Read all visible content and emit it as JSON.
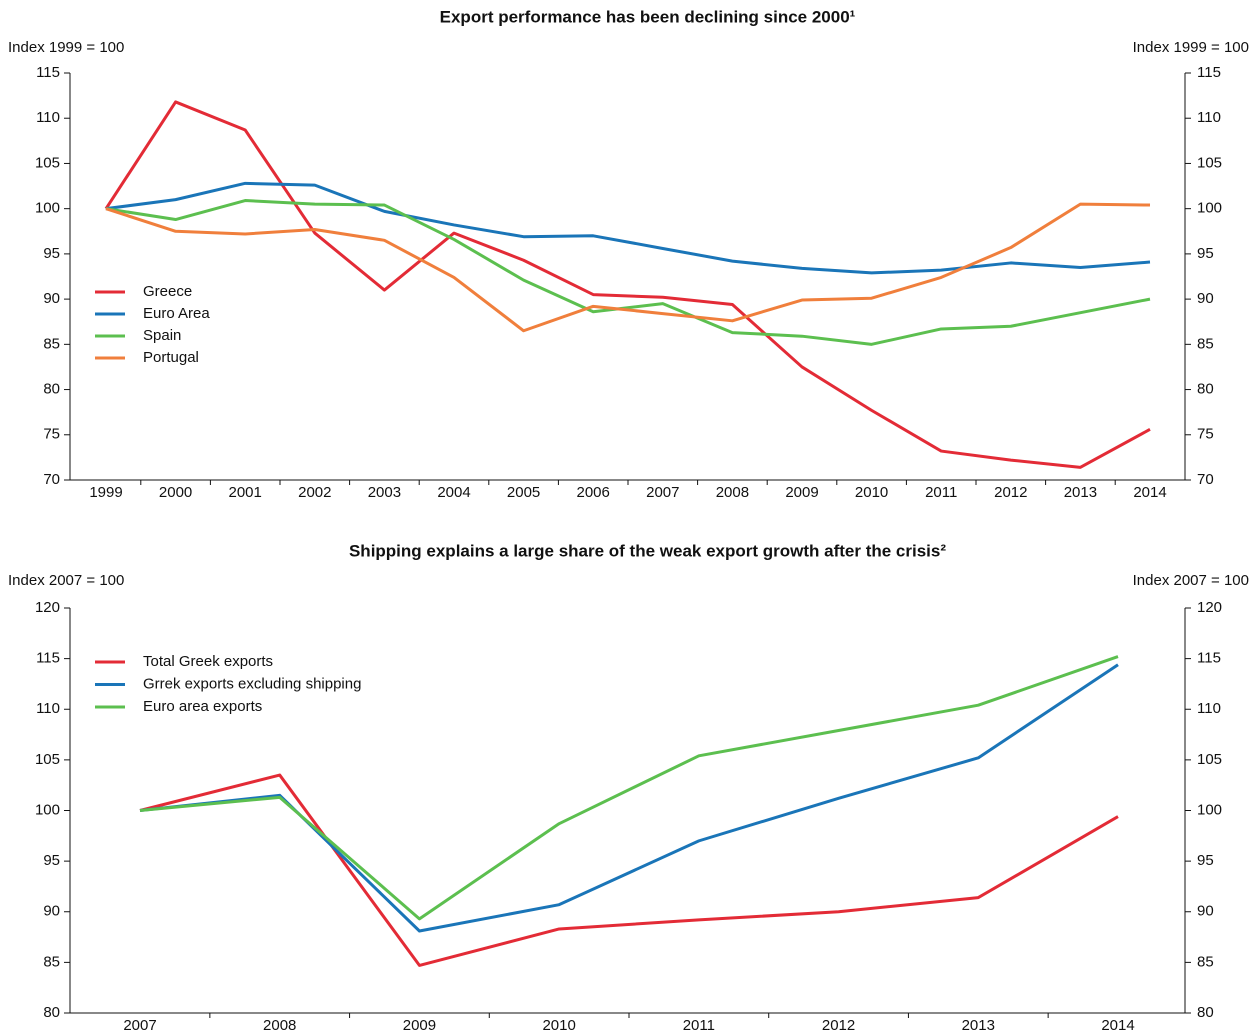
{
  "chart_data": [
    {
      "type": "line",
      "title": "Export performance has been declining since 2000¹",
      "ylabel": "Index 1999 = 100",
      "categories": [
        "1999",
        "2000",
        "2001",
        "2002",
        "2003",
        "2004",
        "2005",
        "2006",
        "2007",
        "2008",
        "2009",
        "2010",
        "2011",
        "2012",
        "2013",
        "2014"
      ],
      "series": [
        {
          "name": "Greece",
          "color": "#e32b36",
          "values": [
            100,
            111.8,
            108.7,
            97.3,
            91.0,
            97.3,
            94.3,
            90.5,
            90.2,
            89.4,
            82.5,
            77.7,
            73.2,
            72.2,
            71.4,
            75.6
          ]
        },
        {
          "name": "Euro Area",
          "color": "#1a75b8",
          "values": [
            100,
            101.0,
            102.8,
            102.6,
            99.7,
            98.2,
            96.9,
            97.0,
            95.6,
            94.2,
            93.4,
            92.9,
            93.2,
            94.0,
            93.5,
            94.1
          ]
        },
        {
          "name": "Spain",
          "color": "#5cbf4f",
          "values": [
            100,
            98.8,
            100.9,
            100.5,
            100.4,
            96.6,
            92.1,
            88.6,
            89.5,
            86.3,
            85.9,
            85.0,
            86.7,
            87.0,
            88.5,
            90.0
          ]
        },
        {
          "name": "Portugal",
          "color": "#f07f3c",
          "values": [
            100,
            97.5,
            97.2,
            97.7,
            96.5,
            92.4,
            86.5,
            89.2,
            88.4,
            87.6,
            89.9,
            90.1,
            92.4,
            95.7,
            100.5,
            100.4
          ]
        }
      ],
      "ylim": [
        70,
        115
      ],
      "yticks": [
        70,
        75,
        80,
        85,
        90,
        95,
        100,
        105,
        110,
        115
      ],
      "grid": false,
      "legend": "left"
    },
    {
      "type": "line",
      "title": "Shipping explains a large share of the weak export growth after the crisis²",
      "ylabel": "Index 2007 = 100",
      "categories": [
        "2007",
        "2008",
        "2009",
        "2010",
        "2011",
        "2012",
        "2013",
        "2014"
      ],
      "series": [
        {
          "name": "Total Greek exports",
          "color": "#e32b36",
          "values": [
            100,
            103.5,
            84.7,
            88.3,
            89.2,
            90.0,
            91.4,
            99.4
          ]
        },
        {
          "name": "Grrek exports excluding shipping",
          "color": "#1a75b8",
          "values": [
            100,
            101.5,
            88.1,
            90.7,
            97.0,
            101.2,
            105.2,
            114.4
          ]
        },
        {
          "name": "Euro area exports",
          "color": "#5cbf4f",
          "values": [
            100,
            101.3,
            89.3,
            98.7,
            105.4,
            107.9,
            110.4,
            115.2
          ]
        }
      ],
      "ylim": [
        80,
        120
      ],
      "yticks": [
        80,
        85,
        90,
        95,
        100,
        105,
        110,
        115,
        120
      ],
      "grid": false,
      "legend": "upper left"
    }
  ]
}
